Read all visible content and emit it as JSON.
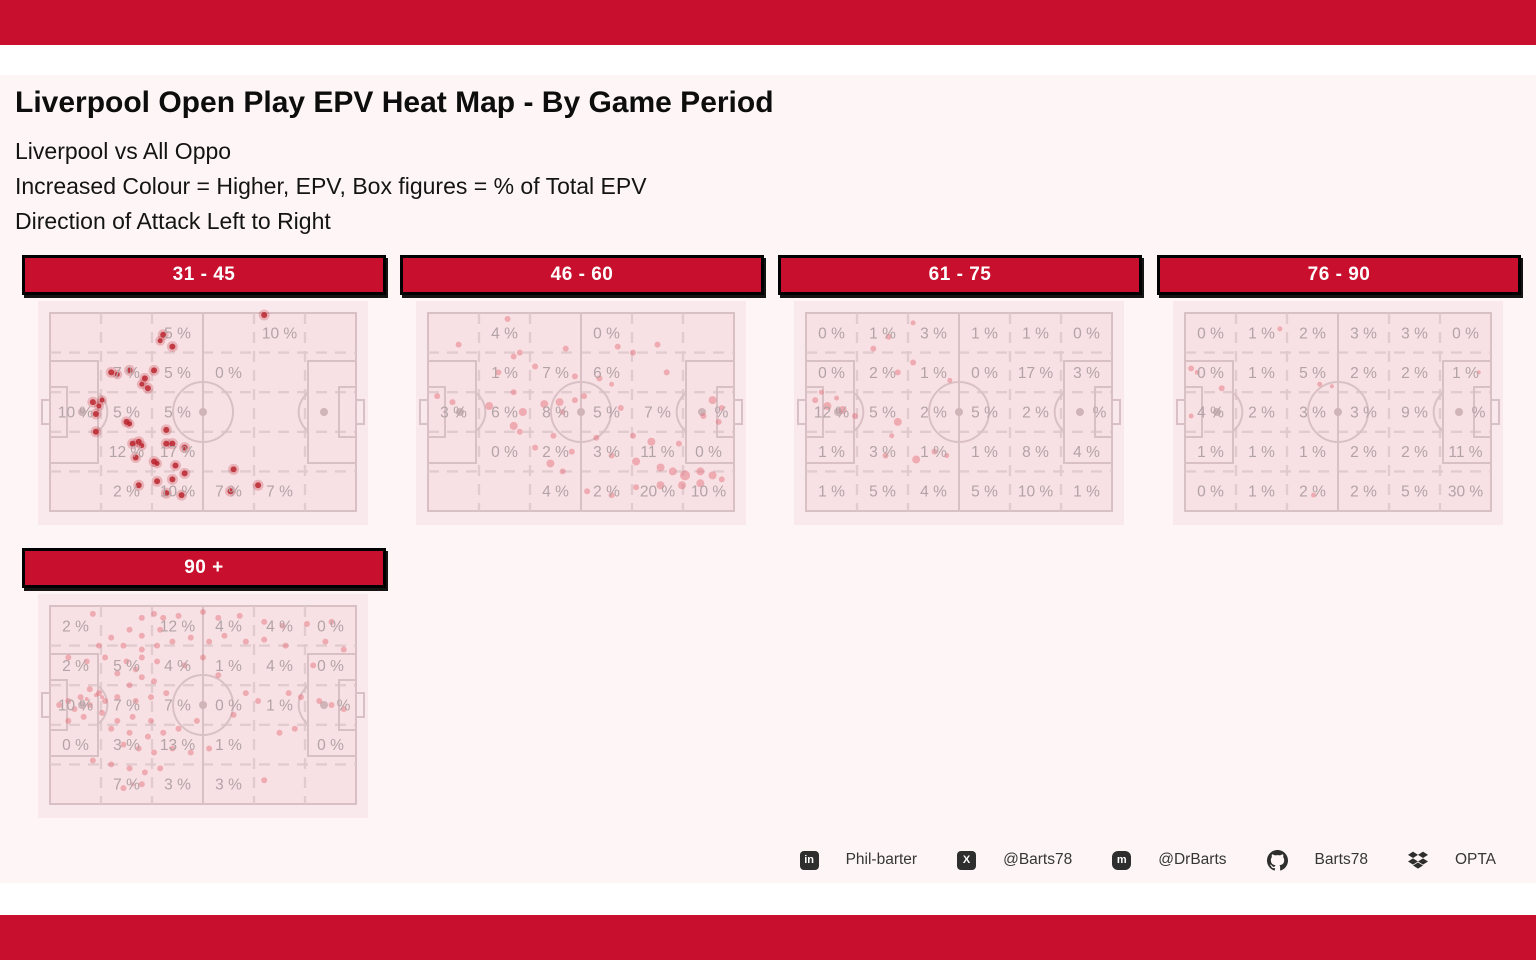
{
  "banner_color": "#C8102E",
  "header": {
    "title": "Liverpool Open Play EPV Heat Map - By Game Period",
    "subtitle1": "Liverpool vs All Oppo",
    "subtitle2": "Increased Colour = Higher, EPV, Box figures = % of Total EPV",
    "subtitle3": "Direction of Attack Left to Right"
  },
  "colors": {
    "accent_red": "#C8102E",
    "content_bg": "#FDF5F6",
    "pitch_surround": "#FAE9EC",
    "pitch_fill": "#F8E1E4",
    "pitch_line": "#D9C0C4",
    "grid_line": "#DFC9CD",
    "zone_text": "#B2A3A6",
    "spot_fill": "#CFB4B8"
  },
  "chart_data": [
    {
      "type": "heatmap",
      "period": "31 - 45",
      "grid_note": "rows top-to-bottom, cols = direction of attack left-to-right, values = % of total EPV",
      "grid": [
        [
          null,
          null,
          "5 %",
          null,
          "10 %",
          null
        ],
        [
          null,
          "7 %",
          "5 %",
          "0 %",
          null,
          null
        ],
        [
          "10 %",
          "5 %",
          "5 %",
          null,
          null,
          null
        ],
        [
          null,
          "12 %",
          "17 %",
          null,
          null,
          null
        ],
        [
          null,
          "2 %",
          "10 %",
          "7 %",
          "7 %",
          null
        ]
      ],
      "dot_color": "rgba(185,32,42,0.82)",
      "halo": true,
      "dots": [
        [
          70,
          1
        ],
        [
          37,
          11
        ],
        [
          40,
          17
        ],
        [
          20,
          30
        ],
        [
          26,
          29
        ],
        [
          34,
          29
        ],
        [
          31,
          33
        ],
        [
          32,
          38
        ],
        [
          14,
          45
        ],
        [
          15,
          51
        ],
        [
          25,
          55
        ],
        [
          15,
          60
        ],
        [
          38,
          59
        ],
        [
          27,
          66
        ],
        [
          29,
          65
        ],
        [
          38,
          66
        ],
        [
          40,
          66
        ],
        [
          44,
          68
        ],
        [
          28,
          73
        ],
        [
          34,
          75
        ],
        [
          41,
          77
        ],
        [
          44,
          81
        ],
        [
          35,
          85
        ],
        [
          40,
          84
        ],
        [
          60,
          79
        ],
        [
          29,
          87
        ],
        [
          38,
          91
        ],
        [
          43,
          92
        ],
        [
          68,
          87
        ],
        [
          59,
          90
        ],
        [
          36,
          14,
          2.5
        ],
        [
          22,
          31,
          2.5
        ],
        [
          30,
          36,
          2.5
        ],
        [
          16,
          47,
          2.5
        ],
        [
          26,
          56,
          2.5
        ],
        [
          30,
          67,
          2.5
        ],
        [
          35,
          76,
          2.5
        ],
        [
          17,
          44,
          2.5
        ]
      ]
    },
    {
      "type": "heatmap",
      "period": "46 - 60",
      "grid": [
        [
          null,
          "4 %",
          null,
          "0 %",
          null,
          null
        ],
        [
          null,
          "1 %",
          "7 %",
          "6 %",
          null,
          null
        ],
        [
          "3 %",
          "6 %",
          "8 %",
          "5 %",
          "7 %",
          "%"
        ],
        [
          null,
          "0 %",
          "2 %",
          "3 %",
          "11 %",
          "0 %"
        ],
        [
          null,
          null,
          "4 %",
          "2 %",
          "20 %",
          "10 %"
        ]
      ],
      "dot_color": "rgba(228,106,118,0.45)",
      "halo": false,
      "dots": [
        [
          26,
          3
        ],
        [
          10,
          16
        ],
        [
          30,
          20
        ],
        [
          28,
          22
        ],
        [
          45,
          18
        ],
        [
          62,
          17
        ],
        [
          67,
          20
        ],
        [
          75,
          16
        ],
        [
          23,
          30
        ],
        [
          35,
          27
        ],
        [
          48,
          32
        ],
        [
          78,
          30
        ],
        [
          3,
          42
        ],
        [
          8,
          45
        ],
        [
          28,
          40
        ],
        [
          20,
          47,
          4
        ],
        [
          31,
          50,
          4
        ],
        [
          38,
          46,
          4
        ],
        [
          43,
          45,
          4
        ],
        [
          48,
          44
        ],
        [
          44,
          50
        ],
        [
          51,
          42
        ],
        [
          63,
          48
        ],
        [
          93,
          44,
          4
        ],
        [
          96,
          48
        ],
        [
          90,
          52
        ],
        [
          95,
          55
        ],
        [
          28,
          57,
          4
        ],
        [
          30,
          60
        ],
        [
          41,
          62
        ],
        [
          55,
          63
        ],
        [
          67,
          62
        ],
        [
          73,
          65,
          4
        ],
        [
          82,
          66
        ],
        [
          60,
          72
        ],
        [
          68,
          75,
          4
        ],
        [
          76,
          78,
          4
        ],
        [
          80,
          80,
          4
        ],
        [
          84,
          82,
          5
        ],
        [
          89,
          80,
          4
        ],
        [
          93,
          82,
          4
        ],
        [
          96,
          84
        ],
        [
          76,
          87,
          4
        ],
        [
          83,
          87,
          4
        ],
        [
          89,
          86,
          4
        ],
        [
          60,
          92
        ],
        [
          68,
          88
        ],
        [
          52,
          90
        ],
        [
          44,
          80
        ],
        [
          40,
          76,
          4
        ],
        [
          56,
          33
        ],
        [
          60,
          36,
          2.5
        ],
        [
          35,
          68
        ],
        [
          47,
          70
        ]
      ]
    },
    {
      "type": "heatmap",
      "period": "61 - 75",
      "grid": [
        [
          "0 %",
          "1 %",
          "3 %",
          "1 %",
          "1 %",
          "0 %"
        ],
        [
          "0 %",
          "2 %",
          "1 %",
          "0 %",
          "17 %",
          "3 %"
        ],
        [
          "12 %",
          "5 %",
          "2 %",
          "5 %",
          "2 %",
          "%"
        ],
        [
          "1 %",
          "3 %",
          "1 %",
          "1 %",
          "8 %",
          "4 %"
        ],
        [
          "1 %",
          "5 %",
          "4 %",
          "5 %",
          "10 %",
          "1 %"
        ]
      ],
      "dot_color": "rgba(228,106,118,0.45)",
      "halo": false,
      "dots": [
        [
          35,
          5,
          2.5
        ],
        [
          27,
          12
        ],
        [
          22,
          18
        ],
        [
          35,
          25
        ],
        [
          30,
          30
        ],
        [
          3,
          44
        ],
        [
          7,
          47,
          4
        ],
        [
          12,
          49,
          4
        ],
        [
          16,
          52
        ],
        [
          10,
          43,
          2.5
        ],
        [
          30,
          55,
          4
        ],
        [
          26,
          72
        ],
        [
          36,
          74,
          4
        ],
        [
          42,
          70
        ],
        [
          46,
          72,
          2.5
        ],
        [
          28,
          62,
          2.5
        ],
        [
          47,
          34,
          2.5
        ],
        [
          5,
          40,
          2.5
        ]
      ]
    },
    {
      "type": "heatmap",
      "period": "76 - 90",
      "grid": [
        [
          "0 %",
          "1 %",
          "2 %",
          "3 %",
          "3 %",
          "0 %"
        ],
        [
          "0 %",
          "1 %",
          "5 %",
          "2 %",
          "2 %",
          "1 %"
        ],
        [
          "4 %",
          "2 %",
          "3 %",
          "3 %",
          "9 %",
          "%"
        ],
        [
          "1 %",
          "1 %",
          "1 %",
          "2 %",
          "2 %",
          "11 %"
        ],
        [
          "0 %",
          "1 %",
          "2 %",
          "2 %",
          "5 %",
          "30 %"
        ]
      ],
      "dot_color": "rgba(228,106,118,0.45)",
      "halo": false,
      "dots": [
        [
          31,
          8,
          2.5
        ],
        [
          2,
          28
        ],
        [
          4,
          30,
          2.5
        ],
        [
          2,
          52,
          2.5
        ],
        [
          44,
          36,
          2.5
        ],
        [
          48,
          37,
          2
        ],
        [
          42,
          92,
          2.5
        ],
        [
          12,
          38
        ],
        [
          96,
          30,
          2
        ]
      ]
    },
    {
      "type": "heatmap",
      "period": "90 +",
      "grid": [
        [
          "2 %",
          null,
          "12 %",
          "4 %",
          "4 %",
          "0 %"
        ],
        [
          "2 %",
          "5 %",
          "4 %",
          "1 %",
          "4 %",
          "0 %"
        ],
        [
          "10 %",
          "7 %",
          "7 %",
          "0 %",
          "1 %",
          "%"
        ],
        [
          "0 %",
          "3 %",
          "13 %",
          "1 %",
          null,
          "0 %"
        ],
        [
          null,
          "7 %",
          "3 %",
          "3 %",
          null,
          null
        ]
      ],
      "dot_color": "rgba(228,106,118,0.45)",
      "halo": false,
      "dots": [
        [
          14,
          4
        ],
        [
          30,
          6
        ],
        [
          34,
          4
        ],
        [
          37,
          6
        ],
        [
          42,
          5
        ],
        [
          50,
          3
        ],
        [
          55,
          6
        ],
        [
          62,
          5
        ],
        [
          70,
          8
        ],
        [
          76,
          10
        ],
        [
          84,
          9
        ],
        [
          26,
          12
        ],
        [
          30,
          15
        ],
        [
          36,
          12
        ],
        [
          20,
          16
        ],
        [
          16,
          20
        ],
        [
          24,
          20
        ],
        [
          30,
          22
        ],
        [
          35,
          20
        ],
        [
          40,
          18
        ],
        [
          46,
          16
        ],
        [
          52,
          18
        ],
        [
          57,
          15
        ],
        [
          64,
          18
        ],
        [
          70,
          17
        ],
        [
          77,
          20
        ],
        [
          90,
          18
        ],
        [
          96,
          22
        ],
        [
          6,
          26
        ],
        [
          12,
          28
        ],
        [
          18,
          26
        ],
        [
          25,
          28
        ],
        [
          30,
          26
        ],
        [
          35,
          28
        ],
        [
          28,
          32
        ],
        [
          22,
          34
        ],
        [
          30,
          36
        ],
        [
          34,
          38
        ],
        [
          26,
          40
        ],
        [
          13,
          42
        ],
        [
          16,
          44
        ],
        [
          10,
          46
        ],
        [
          6,
          48
        ],
        [
          3,
          50
        ],
        [
          8,
          52
        ],
        [
          13,
          50
        ],
        [
          18,
          48
        ],
        [
          22,
          46
        ],
        [
          28,
          48
        ],
        [
          33,
          46
        ],
        [
          38,
          44
        ],
        [
          17,
          54
        ],
        [
          11,
          56
        ],
        [
          6,
          58
        ],
        [
          22,
          58
        ],
        [
          27,
          56
        ],
        [
          33,
          58
        ],
        [
          64,
          44
        ],
        [
          68,
          48
        ],
        [
          78,
          44
        ],
        [
          82,
          46
        ],
        [
          88,
          48
        ],
        [
          92,
          50
        ],
        [
          96,
          52
        ],
        [
          20,
          62
        ],
        [
          26,
          64
        ],
        [
          32,
          66
        ],
        [
          37,
          64
        ],
        [
          42,
          62
        ],
        [
          24,
          70
        ],
        [
          29,
          72
        ],
        [
          34,
          74
        ],
        [
          40,
          72
        ],
        [
          46,
          74
        ],
        [
          52,
          72
        ],
        [
          14,
          78
        ],
        [
          20,
          80
        ],
        [
          26,
          82
        ],
        [
          31,
          84
        ],
        [
          36,
          82
        ],
        [
          30,
          90
        ],
        [
          24,
          92
        ],
        [
          70,
          88
        ],
        [
          75,
          64
        ],
        [
          80,
          62
        ],
        [
          86,
          30
        ],
        [
          92,
          8
        ],
        [
          55,
          35
        ],
        [
          60,
          55
        ],
        [
          48,
          58
        ],
        [
          44,
          30
        ],
        [
          50,
          26
        ],
        [
          15,
          45,
          2
        ],
        [
          12,
          47,
          2
        ],
        [
          17,
          46,
          2
        ],
        [
          27,
          90,
          2
        ]
      ]
    }
  ],
  "footer": {
    "items": [
      {
        "icon": "linkedin-icon",
        "label": "Phil-barter"
      },
      {
        "icon": "x-icon",
        "label": "@Barts78"
      },
      {
        "icon": "mastodon-icon",
        "label": "@DrBarts"
      },
      {
        "icon": "github-icon",
        "label": "Barts78"
      },
      {
        "icon": "dropbox-icon",
        "label": "OPTA"
      }
    ]
  }
}
